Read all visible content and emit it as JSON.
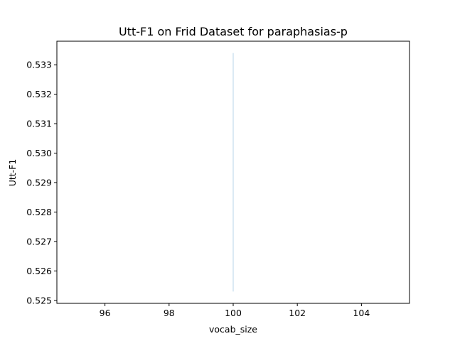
{
  "chart_data": {
    "type": "line",
    "title": "Utt-F1 on Frid Dataset for paraphasias-p",
    "xlabel": "vocab_size",
    "ylabel": "Utt-F1",
    "xlim": [
      94.5,
      105.5
    ],
    "ylim": [
      0.5249,
      0.5338
    ],
    "xticks": [
      96,
      98,
      100,
      102,
      104
    ],
    "xtick_labels": [
      "96",
      "98",
      "100",
      "102",
      "104"
    ],
    "yticks": [
      0.525,
      0.526,
      0.527,
      0.528,
      0.529,
      0.53,
      0.531,
      0.532,
      0.533
    ],
    "ytick_labels": [
      "0.525",
      "0.526",
      "0.527",
      "0.528",
      "0.529",
      "0.530",
      "0.531",
      "0.532",
      "0.533"
    ],
    "series": [
      {
        "x": [
          100,
          100
        ],
        "y": [
          0.5253,
          0.5334
        ],
        "color": "#cfe3f0"
      }
    ],
    "grid": false,
    "legend": "none"
  }
}
